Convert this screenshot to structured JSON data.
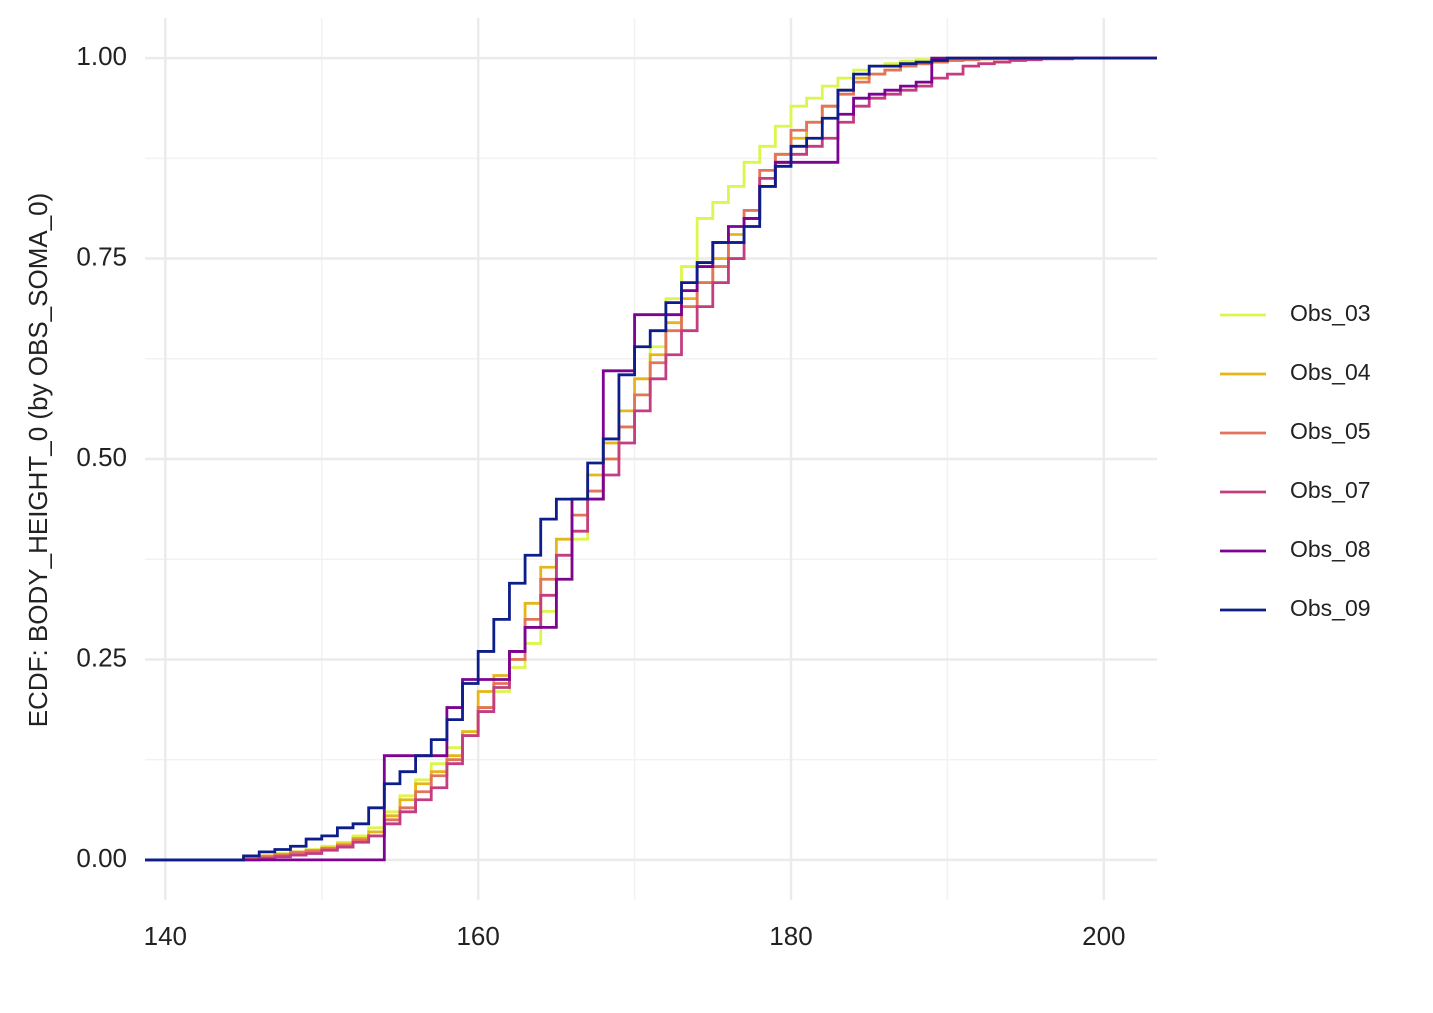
{
  "chart_data": {
    "type": "ecdf",
    "y_label": "ECDF: BODY_HEIGHT_0 (by OBS_SOMA_0)",
    "x": [
      144,
      145,
      146,
      147,
      148,
      149,
      150,
      151,
      152,
      153,
      154,
      155,
      156,
      157,
      158,
      159,
      160,
      161,
      162,
      163,
      164,
      165,
      166,
      167,
      168,
      169,
      170,
      171,
      172,
      173,
      174,
      175,
      176,
      177,
      178,
      179,
      180,
      181,
      182,
      183,
      184,
      185,
      186,
      187,
      188,
      189,
      190,
      191,
      192,
      193,
      194,
      195,
      196,
      197,
      198,
      199,
      200
    ],
    "series": [
      {
        "name": "Obs_03",
        "color": "#dcf64c",
        "values": [
          0,
          0.003,
          0.005,
          0.008,
          0.01,
          0.013,
          0.017,
          0.022,
          0.03,
          0.04,
          0.06,
          0.08,
          0.1,
          0.12,
          0.14,
          0.16,
          0.19,
          0.21,
          0.24,
          0.27,
          0.31,
          0.35,
          0.4,
          0.45,
          0.5,
          0.54,
          0.58,
          0.64,
          0.7,
          0.74,
          0.8,
          0.82,
          0.84,
          0.87,
          0.89,
          0.915,
          0.94,
          0.95,
          0.965,
          0.975,
          0.985,
          0.99,
          0.993,
          0.996,
          0.998,
          1,
          1,
          1,
          1,
          1,
          1,
          1,
          1,
          1,
          1,
          1,
          1
        ]
      },
      {
        "name": "Obs_04",
        "color": "#e6b519",
        "values": [
          0,
          0.003,
          0.005,
          0.007,
          0.01,
          0.012,
          0.015,
          0.02,
          0.027,
          0.035,
          0.055,
          0.075,
          0.095,
          0.11,
          0.13,
          0.16,
          0.21,
          0.23,
          0.26,
          0.32,
          0.365,
          0.4,
          0.45,
          0.48,
          0.52,
          0.56,
          0.6,
          0.63,
          0.67,
          0.7,
          0.72,
          0.75,
          0.78,
          0.8,
          0.84,
          0.88,
          0.9,
          0.92,
          0.94,
          0.96,
          0.975,
          0.98,
          0.985,
          0.99,
          0.993,
          0.996,
          0.997,
          0.998,
          0.999,
          1,
          1,
          1,
          1,
          1,
          1,
          1,
          1
        ]
      },
      {
        "name": "Obs_05",
        "color": "#e2745a",
        "values": [
          0,
          0.002,
          0.004,
          0.006,
          0.009,
          0.011,
          0.014,
          0.018,
          0.025,
          0.03,
          0.05,
          0.065,
          0.085,
          0.105,
          0.125,
          0.155,
          0.19,
          0.22,
          0.25,
          0.3,
          0.35,
          0.38,
          0.43,
          0.46,
          0.5,
          0.54,
          0.58,
          0.62,
          0.66,
          0.69,
          0.72,
          0.74,
          0.77,
          0.81,
          0.86,
          0.88,
          0.91,
          0.92,
          0.94,
          0.955,
          0.97,
          0.98,
          0.985,
          0.99,
          0.993,
          0.995,
          0.997,
          0.998,
          0.999,
          0.999,
          0.999,
          1,
          1,
          1,
          1,
          1,
          1
        ]
      },
      {
        "name": "Obs_07",
        "color": "#c33d80",
        "values": [
          0,
          0,
          0.002,
          0.004,
          0.006,
          0.008,
          0.012,
          0.016,
          0.022,
          0.03,
          0.045,
          0.06,
          0.075,
          0.09,
          0.12,
          0.155,
          0.185,
          0.215,
          0.26,
          0.29,
          0.33,
          0.38,
          0.41,
          0.45,
          0.48,
          0.52,
          0.56,
          0.6,
          0.63,
          0.66,
          0.69,
          0.72,
          0.75,
          0.8,
          0.85,
          0.87,
          0.88,
          0.89,
          0.9,
          0.92,
          0.94,
          0.95,
          0.955,
          0.96,
          0.965,
          0.975,
          0.98,
          0.99,
          0.993,
          0.995,
          0.997,
          0.998,
          0.999,
          0.999,
          1,
          1,
          1
        ]
      },
      {
        "name": "Obs_08",
        "color": "#7d0392",
        "values": [
          0,
          0,
          0,
          0,
          0,
          0,
          0,
          0,
          0,
          0,
          0.13,
          0.13,
          0.13,
          0.13,
          0.19,
          0.225,
          0.225,
          0.225,
          0.26,
          0.29,
          0.29,
          0.35,
          0.45,
          0.45,
          0.61,
          0.61,
          0.68,
          0.68,
          0.68,
          0.71,
          0.74,
          0.77,
          0.79,
          0.8,
          0.84,
          0.87,
          0.87,
          0.87,
          0.87,
          0.93,
          0.95,
          0.955,
          0.96,
          0.965,
          0.97,
          1,
          1,
          1,
          1,
          1,
          1,
          1,
          1,
          1,
          1,
          1,
          1
        ]
      },
      {
        "name": "Obs_09",
        "color": "#0d1d8a",
        "values": [
          0,
          0.005,
          0.01,
          0.013,
          0.017,
          0.026,
          0.03,
          0.04,
          0.045,
          0.065,
          0.095,
          0.11,
          0.13,
          0.15,
          0.175,
          0.22,
          0.26,
          0.3,
          0.345,
          0.38,
          0.425,
          0.45,
          0.45,
          0.495,
          0.525,
          0.605,
          0.64,
          0.66,
          0.695,
          0.72,
          0.745,
          0.77,
          0.77,
          0.79,
          0.84,
          0.865,
          0.89,
          0.9,
          0.925,
          0.96,
          0.98,
          0.99,
          0.99,
          0.993,
          0.995,
          0.997,
          1,
          1,
          1,
          1,
          1,
          1,
          1,
          1,
          1,
          1,
          1
        ]
      }
    ],
    "xlim": [
      138.7,
      203.4
    ],
    "xticks": [
      140,
      160,
      180,
      200
    ],
    "ylim": [
      -0.05,
      1.05
    ],
    "yticks": [
      {
        "value": 0,
        "label": "0.00"
      },
      {
        "value": 0.25,
        "label": "0.25"
      },
      {
        "value": 0.5,
        "label": "0.50"
      },
      {
        "value": 0.75,
        "label": "0.75"
      },
      {
        "value": 1,
        "label": "1.00"
      }
    ],
    "grid": true,
    "legend": "right"
  }
}
